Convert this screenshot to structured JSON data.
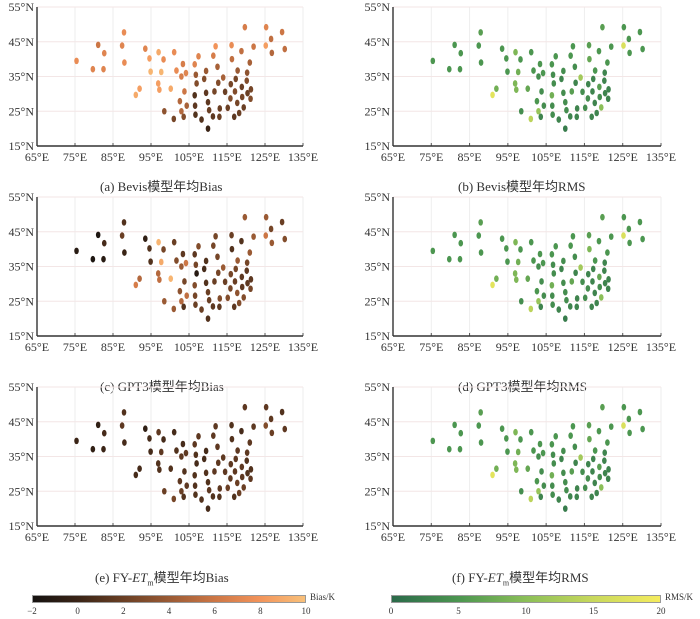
{
  "chart_data": {
    "type": "scatter",
    "map_axes": {
      "x_ticks": [
        "65°E",
        "75°E",
        "85°E",
        "95°E",
        "105°E",
        "115°E",
        "125°E",
        "135°E"
      ],
      "x_values": [
        65,
        75,
        85,
        95,
        105,
        115,
        125,
        135
      ],
      "y_ticks": [
        "15°N",
        "25°N",
        "35°N",
        "45°N",
        "55°N"
      ],
      "y_values": [
        15,
        25,
        35,
        45,
        55
      ],
      "xlim": [
        65,
        135
      ],
      "ylim": [
        15,
        55
      ],
      "grid": true
    },
    "stations": [
      [
        75.4,
        39.5
      ],
      [
        79.7,
        37.1
      ],
      [
        82.5,
        37.1
      ],
      [
        81.1,
        44.1
      ],
      [
        82.7,
        41.7
      ],
      [
        87.9,
        47.7
      ],
      [
        87.4,
        43.9
      ],
      [
        88.0,
        39.0
      ],
      [
        93.5,
        43.0
      ],
      [
        94.6,
        40.2
      ],
      [
        94.9,
        36.4
      ],
      [
        97.0,
        42.0
      ],
      [
        98.3,
        39.9
      ],
      [
        97.7,
        36.3
      ],
      [
        96.9,
        33.0
      ],
      [
        97.2,
        31.2
      ],
      [
        92.0,
        31.5
      ],
      [
        91.0,
        29.7
      ],
      [
        100.2,
        31.5
      ],
      [
        101.1,
        42.0
      ],
      [
        101.7,
        36.7
      ],
      [
        103.0,
        35.0
      ],
      [
        103.4,
        38.6
      ],
      [
        104.2,
        36.0
      ],
      [
        103.8,
        30.7
      ],
      [
        102.6,
        27.9
      ],
      [
        103.0,
        25.0
      ],
      [
        103.6,
        23.4
      ],
      [
        104.4,
        26.6
      ],
      [
        98.5,
        25.0
      ],
      [
        101.0,
        22.8
      ],
      [
        106.5,
        38.5
      ],
      [
        107.5,
        40.8
      ],
      [
        106.8,
        35.5
      ],
      [
        107.0,
        33.0
      ],
      [
        106.5,
        29.6
      ],
      [
        106.6,
        26.6
      ],
      [
        106.7,
        24.0
      ],
      [
        108.3,
        22.6
      ],
      [
        109.0,
        34.3
      ],
      [
        109.5,
        36.6
      ],
      [
        109.5,
        30.3
      ],
      [
        110.0,
        27.6
      ],
      [
        110.3,
        25.3
      ],
      [
        111.3,
        23.5
      ],
      [
        110.0,
        20.0
      ],
      [
        111.7,
        30.7
      ],
      [
        111.4,
        41.0
      ],
      [
        112.0,
        43.7
      ],
      [
        112.5,
        37.8
      ],
      [
        112.7,
        33.2
      ],
      [
        113.1,
        25.8
      ],
      [
        113.0,
        23.4
      ],
      [
        114.0,
        34.7
      ],
      [
        114.5,
        30.6
      ],
      [
        115.2,
        26.0
      ],
      [
        115.9,
        28.7
      ],
      [
        116.0,
        32.8
      ],
      [
        116.3,
        40.0
      ],
      [
        116.2,
        44.0
      ],
      [
        116.9,
        23.4
      ],
      [
        117.1,
        30.7
      ],
      [
        117.3,
        34.3
      ],
      [
        117.7,
        27.4
      ],
      [
        117.8,
        36.7
      ],
      [
        118.2,
        24.5
      ],
      [
        118.8,
        42.3
      ],
      [
        118.9,
        32.0
      ],
      [
        119.0,
        29.1
      ],
      [
        119.4,
        26.1
      ],
      [
        119.7,
        49.2
      ],
      [
        120.4,
        30.2
      ],
      [
        120.3,
        36.1
      ],
      [
        120.2,
        33.8
      ],
      [
        121.3,
        31.3
      ],
      [
        121.2,
        28.6
      ],
      [
        121.0,
        39.0
      ],
      [
        122.0,
        43.6
      ],
      [
        125.3,
        49.2
      ],
      [
        125.2,
        43.9
      ],
      [
        126.6,
        45.8
      ],
      [
        126.8,
        41.8
      ],
      [
        129.5,
        47.8
      ],
      [
        130.2,
        42.9
      ]
    ],
    "panels": [
      {
        "id": "a",
        "caption": "(a) Bevis模型年均Bias",
        "metric": "Bias",
        "values": [
          7.5,
          7.0,
          7.0,
          6.0,
          7.0,
          7.5,
          7.0,
          7.5,
          7.0,
          8.5,
          9.5,
          9.0,
          7.5,
          9.5,
          8.5,
          8.5,
          8.5,
          9.0,
          9.0,
          7.5,
          7.5,
          6.5,
          6.5,
          7.0,
          6.0,
          5.0,
          5.0,
          3.0,
          4.5,
          3.5,
          2.5,
          7.0,
          7.0,
          4.0,
          3.0,
          1.0,
          1.5,
          1.0,
          1.0,
          3.0,
          4.0,
          1.5,
          1.5,
          2.0,
          1.5,
          0.0,
          2.5,
          6.5,
          8.0,
          4.5,
          3.0,
          2.0,
          2.0,
          4.5,
          2.0,
          2.0,
          3.0,
          2.5,
          5.5,
          7.5,
          1.5,
          3.0,
          2.5,
          2.5,
          4.0,
          2.0,
          5.5,
          2.0,
          2.5,
          2.0,
          6.5,
          2.0,
          3.5,
          3.0,
          2.5,
          3.0,
          4.5,
          6.0,
          7.0,
          8.5,
          5.5,
          5.0,
          6.0,
          5.5
        ]
      },
      {
        "id": "b",
        "caption": "(b) Bevis模型年均RMS",
        "metric": "RMS",
        "values": [
          5,
          5,
          5,
          5,
          5,
          6,
          5,
          5,
          5,
          5,
          5,
          9,
          5,
          8,
          9,
          9,
          8,
          18,
          7,
          5,
          5,
          4,
          5,
          5,
          4,
          5,
          11,
          3,
          4,
          4,
          14,
          5,
          5,
          4,
          4,
          8,
          4,
          4,
          3,
          3,
          4,
          4,
          4,
          4,
          3,
          2,
          6,
          5,
          5,
          4,
          3,
          3,
          3,
          12,
          4,
          4,
          4,
          3,
          7,
          6,
          3,
          3,
          3,
          3,
          5,
          3,
          5,
          6,
          4,
          10,
          6,
          3,
          3,
          3,
          3,
          3,
          5,
          5,
          5,
          17,
          5,
          5,
          5,
          5
        ]
      },
      {
        "id": "c",
        "caption": "(c) GPT3模型年均Bias",
        "metric": "Bias",
        "values": [
          -1.0,
          -1.5,
          -1.0,
          -1.5,
          0.5,
          1.0,
          2.0,
          0.0,
          -0.5,
          1.0,
          1.0,
          9.5,
          2.5,
          9.0,
          5.0,
          5.5,
          5.0,
          6.5,
          9.5,
          2.0,
          3.0,
          4.0,
          1.5,
          6.0,
          2.5,
          3.5,
          5.0,
          1.0,
          5.5,
          4.0,
          4.0,
          1.5,
          3.0,
          2.5,
          -1.0,
          3.0,
          2.5,
          2.0,
          2.0,
          0.5,
          1.0,
          1.0,
          2.0,
          2.0,
          1.5,
          1.0,
          2.0,
          2.5,
          2.5,
          2.5,
          2.5,
          3.0,
          1.5,
          4.0,
          2.0,
          3.0,
          2.5,
          2.5,
          1.0,
          2.0,
          1.5,
          2.0,
          2.5,
          3.5,
          4.0,
          3.0,
          1.0,
          1.5,
          1.5,
          3.0,
          4.0,
          1.5,
          2.5,
          1.5,
          1.5,
          2.5,
          4.0,
          4.0,
          4.0,
          6.0,
          2.5,
          4.0,
          2.0,
          3.0
        ]
      },
      {
        "id": "d",
        "caption": "(d) GPT3模型年均RMS",
        "metric": "RMS",
        "values": [
          5,
          5,
          5,
          5,
          5,
          6,
          5,
          5,
          5,
          5,
          5,
          9,
          5,
          8,
          9,
          9,
          8,
          18,
          7,
          5,
          5,
          4,
          5,
          5,
          4,
          5,
          11,
          3,
          4,
          4,
          14,
          5,
          5,
          4,
          4,
          8,
          4,
          4,
          3,
          3,
          4,
          4,
          4,
          4,
          3,
          2,
          7,
          5,
          5,
          4,
          3,
          3,
          3,
          12,
          4,
          4,
          4,
          3,
          9,
          6,
          3,
          3,
          3,
          3,
          5,
          3,
          5,
          7,
          4,
          10,
          6,
          3,
          3,
          3,
          3,
          3,
          5,
          5,
          5,
          17,
          5,
          5,
          5,
          5
        ]
      },
      {
        "id": "e",
        "caption_prefix": "(e) FY-",
        "caption_italic": "ET",
        "caption_sub": "m",
        "caption_suffix": "模型年均Bias",
        "metric": "Bias",
        "values": [
          0.0,
          -0.5,
          0.0,
          -0.5,
          0.5,
          1.0,
          1.5,
          0.5,
          -0.5,
          0.5,
          0.5,
          1.5,
          0.5,
          1.5,
          1.0,
          1.0,
          0.5,
          0.5,
          1.0,
          0.5,
          1.0,
          1.5,
          0.5,
          1.5,
          1.0,
          1.5,
          2.0,
          1.0,
          1.5,
          2.0,
          2.5,
          1.5,
          1.5,
          1.0,
          0.5,
          1.0,
          1.0,
          1.0,
          1.0,
          0.5,
          0.5,
          1.0,
          1.0,
          1.5,
          1.0,
          0.5,
          1.5,
          1.5,
          1.5,
          1.5,
          1.5,
          1.5,
          1.0,
          1.5,
          1.5,
          2.0,
          1.5,
          1.5,
          1.0,
          1.0,
          1.0,
          1.5,
          1.5,
          2.0,
          1.5,
          2.0,
          0.5,
          1.5,
          1.5,
          2.0,
          1.5,
          1.0,
          1.5,
          1.0,
          1.0,
          1.5,
          1.5,
          1.5,
          1.5,
          3.0,
          1.5,
          2.0,
          1.0,
          1.5
        ]
      },
      {
        "id": "f",
        "caption_prefix": "(f) FY-",
        "caption_italic": "ET",
        "caption_sub": "m",
        "caption_suffix": "模型年均RMS",
        "metric": "RMS",
        "values": [
          5,
          5,
          5,
          5,
          5,
          6,
          5,
          5,
          5,
          5,
          5,
          9,
          5,
          8,
          9,
          9,
          8,
          18,
          7,
          5,
          5,
          4,
          5,
          5,
          4,
          5,
          11,
          3,
          4,
          4,
          14,
          5,
          5,
          4,
          4,
          8,
          4,
          4,
          3,
          3,
          4,
          4,
          4,
          4,
          3,
          2,
          6,
          5,
          5,
          4,
          3,
          3,
          3,
          12,
          4,
          4,
          4,
          3,
          7,
          6,
          3,
          3,
          3,
          3,
          5,
          3,
          5,
          6,
          4,
          10,
          6,
          3,
          3,
          3,
          3,
          3,
          5,
          5,
          5,
          17,
          5,
          5,
          5,
          5
        ]
      }
    ],
    "colorbars": {
      "bias": {
        "label": "Bias/K",
        "range": [
          -2,
          10
        ],
        "ticks": [
          "−2",
          "0",
          "2",
          "4",
          "6",
          "8",
          "10"
        ],
        "tick_values": [
          -2,
          0,
          2,
          4,
          6,
          8,
          10
        ],
        "colors": [
          "#151210",
          "#3a2416",
          "#6a3f24",
          "#9a5a34",
          "#cc7645",
          "#f2935a",
          "#f8c07a"
        ]
      },
      "rms": {
        "label": "RMS/K",
        "range": [
          0,
          20
        ],
        "ticks": [
          "0",
          "5",
          "10",
          "15",
          "20"
        ],
        "tick_values": [
          0,
          5,
          10,
          15,
          20
        ],
        "colors": [
          "#2b6a4a",
          "#4c9650",
          "#8bbf58",
          "#c8d85c",
          "#f5ec5e"
        ]
      }
    }
  }
}
